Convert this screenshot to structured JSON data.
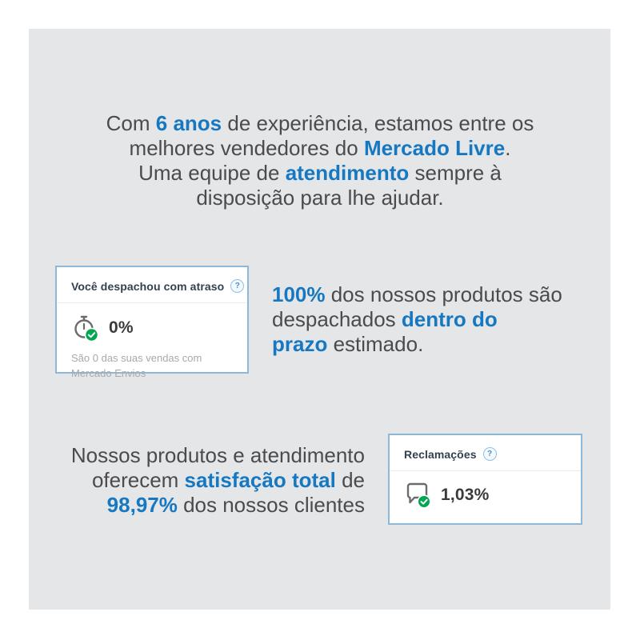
{
  "colors": {
    "accent": "#1778c2",
    "panel_bg": "#e5e6e8",
    "card_border": "#8db8d8",
    "green": "#00a650",
    "text": "#4b4b4d",
    "muted": "#a9a9a9",
    "title": "#334150"
  },
  "headline": {
    "lines": [
      [
        {
          "t": "Com "
        },
        {
          "t": "6 anos",
          "b": true
        },
        {
          "t": " de experiência, estamos entre os"
        }
      ],
      [
        {
          "t": "melhores vendedores do "
        },
        {
          "t": "Mercado Livre",
          "b": true
        },
        {
          "t": "."
        }
      ],
      [
        {
          "t": "Uma equipe de "
        },
        {
          "t": "atendimento",
          "b": true
        },
        {
          "t": " sempre à"
        }
      ],
      [
        {
          "t": "disposição para lhe ajudar."
        }
      ]
    ]
  },
  "shipping_card": {
    "title": "Você despachou com atraso",
    "help_icon_glyph": "?",
    "value": "0%",
    "caption": "São 0 das suas vendas com Mercado Envios"
  },
  "shipping_text": {
    "lines": [
      [
        {
          "t": "100%",
          "b": true
        },
        {
          "t": " dos nossos produtos são"
        }
      ],
      [
        {
          "t": "despachados "
        },
        {
          "t": "dentro do",
          "b": true
        }
      ],
      [
        {
          "t": "prazo",
          "b": true
        },
        {
          "t": " estimado."
        }
      ]
    ]
  },
  "satisfaction_text": {
    "lines": [
      [
        {
          "t": "Nossos produtos e atendimento"
        }
      ],
      [
        {
          "t": "oferecem "
        },
        {
          "t": "satisfação total",
          "b": true
        },
        {
          "t": " de"
        }
      ],
      [
        {
          "t": "98,97%",
          "b": true
        },
        {
          "t": " dos nossos clientes"
        }
      ]
    ]
  },
  "claims_card": {
    "title": "Reclamações",
    "help_icon_glyph": "?",
    "value": "1,03%"
  }
}
